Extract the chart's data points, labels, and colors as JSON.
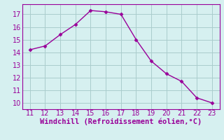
{
  "x": [
    11,
    12,
    13,
    14,
    15,
    16,
    17,
    18,
    19,
    20,
    21,
    22,
    23
  ],
  "y": [
    14.2,
    14.5,
    15.4,
    16.2,
    17.3,
    17.2,
    17.0,
    15.0,
    13.3,
    12.3,
    11.7,
    10.4,
    10.0
  ],
  "line_color": "#990099",
  "marker": "D",
  "marker_size": 2.5,
  "bg_color": "#d6f0f0",
  "grid_color": "#aacccc",
  "xlabel": "Windchill (Refroidissement éolien,°C)",
  "xlabel_color": "#990099",
  "tick_color": "#990099",
  "spine_color": "#990099",
  "xlim": [
    10.5,
    23.5
  ],
  "ylim": [
    9.5,
    17.8
  ],
  "xticks": [
    11,
    12,
    13,
    14,
    15,
    16,
    17,
    18,
    19,
    20,
    21,
    22,
    23
  ],
  "yticks": [
    10,
    11,
    12,
    13,
    14,
    15,
    16,
    17
  ],
  "font_size": 7.0,
  "label_font_size": 7.5
}
